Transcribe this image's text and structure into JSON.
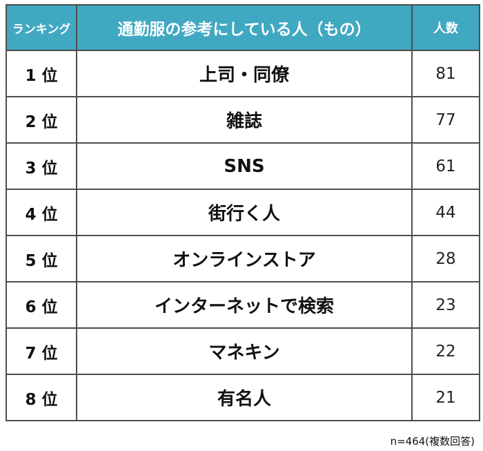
{
  "header": {
    "rank": "ランキング",
    "item": "通勤服の参考にしている人（もの）",
    "count": "人数"
  },
  "colors": {
    "header_bg": "#41a8c2",
    "header_text": "#ffffff",
    "border": "#4d4d4d"
  },
  "rows": [
    {
      "rank": "1 位",
      "item": "上司・同僚",
      "count": "81"
    },
    {
      "rank": "2 位",
      "item": "雑誌",
      "count": "77"
    },
    {
      "rank": "3 位",
      "item": "SNS",
      "count": "61"
    },
    {
      "rank": "4 位",
      "item": "街行く人",
      "count": "44"
    },
    {
      "rank": "5 位",
      "item": "オンラインストア",
      "count": "28"
    },
    {
      "rank": "6 位",
      "item": "インターネットで検索",
      "count": "23"
    },
    {
      "rank": "7 位",
      "item": "マネキン",
      "count": "22"
    },
    {
      "rank": "8 位",
      "item": "有名人",
      "count": "21"
    }
  ],
  "note": "n=464(複数回答)"
}
